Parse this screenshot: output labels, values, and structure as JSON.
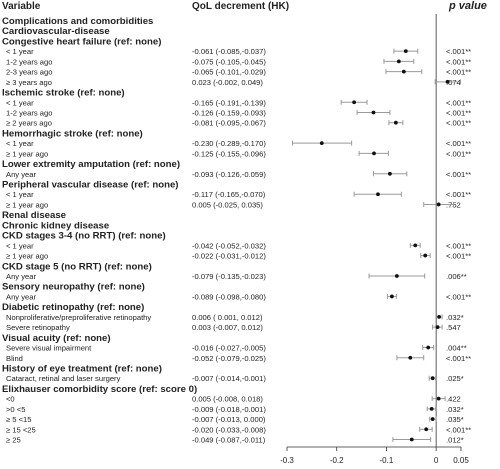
{
  "header": {
    "variable": "Variable",
    "estimate": "QoL decrement (HK)",
    "pvalue": "p value"
  },
  "chart_data": {
    "type": "forest",
    "xlim": [
      -0.3,
      0.05
    ],
    "xticks": [
      {
        "value": -0.3,
        "label": "-0.3"
      },
      {
        "value": -0.2,
        "label": "-0.2"
      },
      {
        "value": -0.1,
        "label": "-0.1"
      },
      {
        "value": 0,
        "label": "0"
      },
      {
        "value": 0.05,
        "label": "0.05"
      }
    ],
    "reference_line": 0,
    "rows": [
      {
        "kind": "section",
        "label": "Complications and comorbidities"
      },
      {
        "kind": "section",
        "label": "Cardiovascular-disease"
      },
      {
        "kind": "group",
        "label": "Congestive heart failure (ref: none)"
      },
      {
        "kind": "item",
        "label": "< 1 year",
        "est_text": "-0.061 (-0.085,-0.037)",
        "p": "<.001**",
        "est": -0.061,
        "lo": -0.085,
        "hi": -0.037
      },
      {
        "kind": "item",
        "label": "1-2 years ago",
        "est_text": "-0.075 (-0.105,-0.045)",
        "p": "<.001**",
        "est": -0.075,
        "lo": -0.105,
        "hi": -0.045
      },
      {
        "kind": "item",
        "label": "2-3 years ago",
        "est_text": "-0.065 (-0.101,-0.029)",
        "p": "<.001**",
        "est": -0.065,
        "lo": -0.101,
        "hi": -0.029
      },
      {
        "kind": "item",
        "label": "≥ 3 years ago",
        "est_text": "0.023 (-0.002, 0.049)",
        "p": ".074",
        "est": 0.023,
        "lo": -0.002,
        "hi": 0.049
      },
      {
        "kind": "group",
        "label": "Ischemic stroke (ref: none)"
      },
      {
        "kind": "item",
        "label": "< 1 year",
        "est_text": "-0.165 (-0.191,-0.139)",
        "p": "<.001**",
        "est": -0.165,
        "lo": -0.191,
        "hi": -0.139
      },
      {
        "kind": "item",
        "label": "1-2 years ago",
        "est_text": "-0.126 (-0.159,-0.093)",
        "p": "<.001**",
        "est": -0.126,
        "lo": -0.159,
        "hi": -0.093
      },
      {
        "kind": "item",
        "label": "≥ 2 years ago",
        "est_text": "-0.081 (-0.095,-0.067)",
        "p": "<.001**",
        "est": -0.081,
        "lo": -0.095,
        "hi": -0.067
      },
      {
        "kind": "group",
        "label": "Hemorrhagic stroke (ref: none)"
      },
      {
        "kind": "item",
        "label": "< 1 year",
        "est_text": "-0.230 (-0.289,-0.170)",
        "p": "<.001**",
        "est": -0.23,
        "lo": -0.289,
        "hi": -0.17
      },
      {
        "kind": "item",
        "label": "≥ 1 year ago",
        "est_text": "-0.125 (-0.155,-0.096)",
        "p": "<.001**",
        "est": -0.125,
        "lo": -0.155,
        "hi": -0.096
      },
      {
        "kind": "group",
        "label": "Lower extremity amputation (ref: none)"
      },
      {
        "kind": "item",
        "label": "Any year",
        "est_text": "-0.093 (-0.126,-0.059)",
        "p": "<.001**",
        "est": -0.093,
        "lo": -0.126,
        "hi": -0.059
      },
      {
        "kind": "group",
        "label": "Peripheral vascular disease (ref: none)"
      },
      {
        "kind": "item",
        "label": "< 1 year",
        "est_text": "-0.117 (-0.165,-0.070)",
        "p": "<.001**",
        "est": -0.117,
        "lo": -0.165,
        "hi": -0.07
      },
      {
        "kind": "item",
        "label": "≥ 1 year ago",
        "est_text": "0.005 (-0.025, 0.035)",
        "p": ".752",
        "est": 0.005,
        "lo": -0.025,
        "hi": 0.035
      },
      {
        "kind": "section",
        "label": "Renal disease"
      },
      {
        "kind": "section",
        "label": "Chronic kidney disease"
      },
      {
        "kind": "group",
        "label": "CKD stages 3-4 (no RRT) (ref: none)"
      },
      {
        "kind": "item",
        "label": "< 1 year",
        "est_text": "-0.042 (-0.052,-0.032)",
        "p": "<.001**",
        "est": -0.042,
        "lo": -0.052,
        "hi": -0.032
      },
      {
        "kind": "item",
        "label": "≥ 1 year ago",
        "est_text": "-0.022 (-0.031,-0.012)",
        "p": "<.001**",
        "est": -0.022,
        "lo": -0.031,
        "hi": -0.012
      },
      {
        "kind": "group",
        "label": "CKD stage 5 (no RRT) (ref: none)"
      },
      {
        "kind": "item",
        "label": "Any year",
        "est_text": "-0.079 (-0.135,-0.023)",
        "p": ".006**",
        "est": -0.079,
        "lo": -0.135,
        "hi": -0.023
      },
      {
        "kind": "group",
        "label": "Sensory neuropathy (ref: none)"
      },
      {
        "kind": "item",
        "label": "Any year",
        "est_text": "-0.089 (-0.098,-0.080)",
        "p": "<.001**",
        "est": -0.089,
        "lo": -0.098,
        "hi": -0.08
      },
      {
        "kind": "group",
        "label": "Diabetic retinopathy (ref: none)"
      },
      {
        "kind": "item",
        "label": "Nonproliferative/preproliferative retinopathy",
        "est_text": "0.006 ( 0.001, 0.012)",
        "p": ".032*",
        "est": 0.006,
        "lo": 0.001,
        "hi": 0.012
      },
      {
        "kind": "item",
        "label": "Severe retinopathy",
        "est_text": "0.003 (-0.007, 0.012)",
        "p": ".547",
        "est": 0.003,
        "lo": -0.007,
        "hi": 0.012
      },
      {
        "kind": "group",
        "label": "Visual acuity (ref: none)"
      },
      {
        "kind": "item",
        "label": "Severe visual impairment",
        "est_text": "-0.016 (-0.027,-0.005)",
        "p": ".004**",
        "est": -0.016,
        "lo": -0.027,
        "hi": -0.005
      },
      {
        "kind": "item",
        "label": "Blind",
        "est_text": "-0.052 (-0.079,-0.025)",
        "p": "<.001**",
        "est": -0.052,
        "lo": -0.079,
        "hi": -0.025
      },
      {
        "kind": "group",
        "label": "History of eye treatment (ref: none)"
      },
      {
        "kind": "item",
        "label": "Cataract, retinal and laser surgery",
        "est_text": "-0.007 (-0.014,-0.001)",
        "p": ".025*",
        "est": -0.007,
        "lo": -0.014,
        "hi": -0.001
      },
      {
        "kind": "group",
        "label": "Elixhauser comorbidity score (ref: score 0)"
      },
      {
        "kind": "item",
        "label": "<0",
        "est_text": "0.005 (-0.008, 0.018)",
        "p": ".422",
        "est": 0.005,
        "lo": -0.008,
        "hi": 0.018
      },
      {
        "kind": "item",
        "label": ">0 <5",
        "est_text": "-0.009 (-0.018,-0.001)",
        "p": ".032*",
        "est": -0.009,
        "lo": -0.018,
        "hi": -0.001
      },
      {
        "kind": "item",
        "label": "≥ 5 <15",
        "est_text": "-0.007 (-0.013, 0.000)",
        "p": ".035*",
        "est": -0.007,
        "lo": -0.013,
        "hi": 0.0
      },
      {
        "kind": "item",
        "label": "≥ 15 <25",
        "est_text": "-0.020 (-0.033,-0.008)",
        "p": "<.001**",
        "est": -0.02,
        "lo": -0.033,
        "hi": -0.008
      },
      {
        "kind": "item",
        "label": "≥ 25",
        "est_text": "-0.049 (-0.087,-0.011)",
        "p": ".012*",
        "est": -0.049,
        "lo": -0.087,
        "hi": -0.011
      }
    ]
  }
}
